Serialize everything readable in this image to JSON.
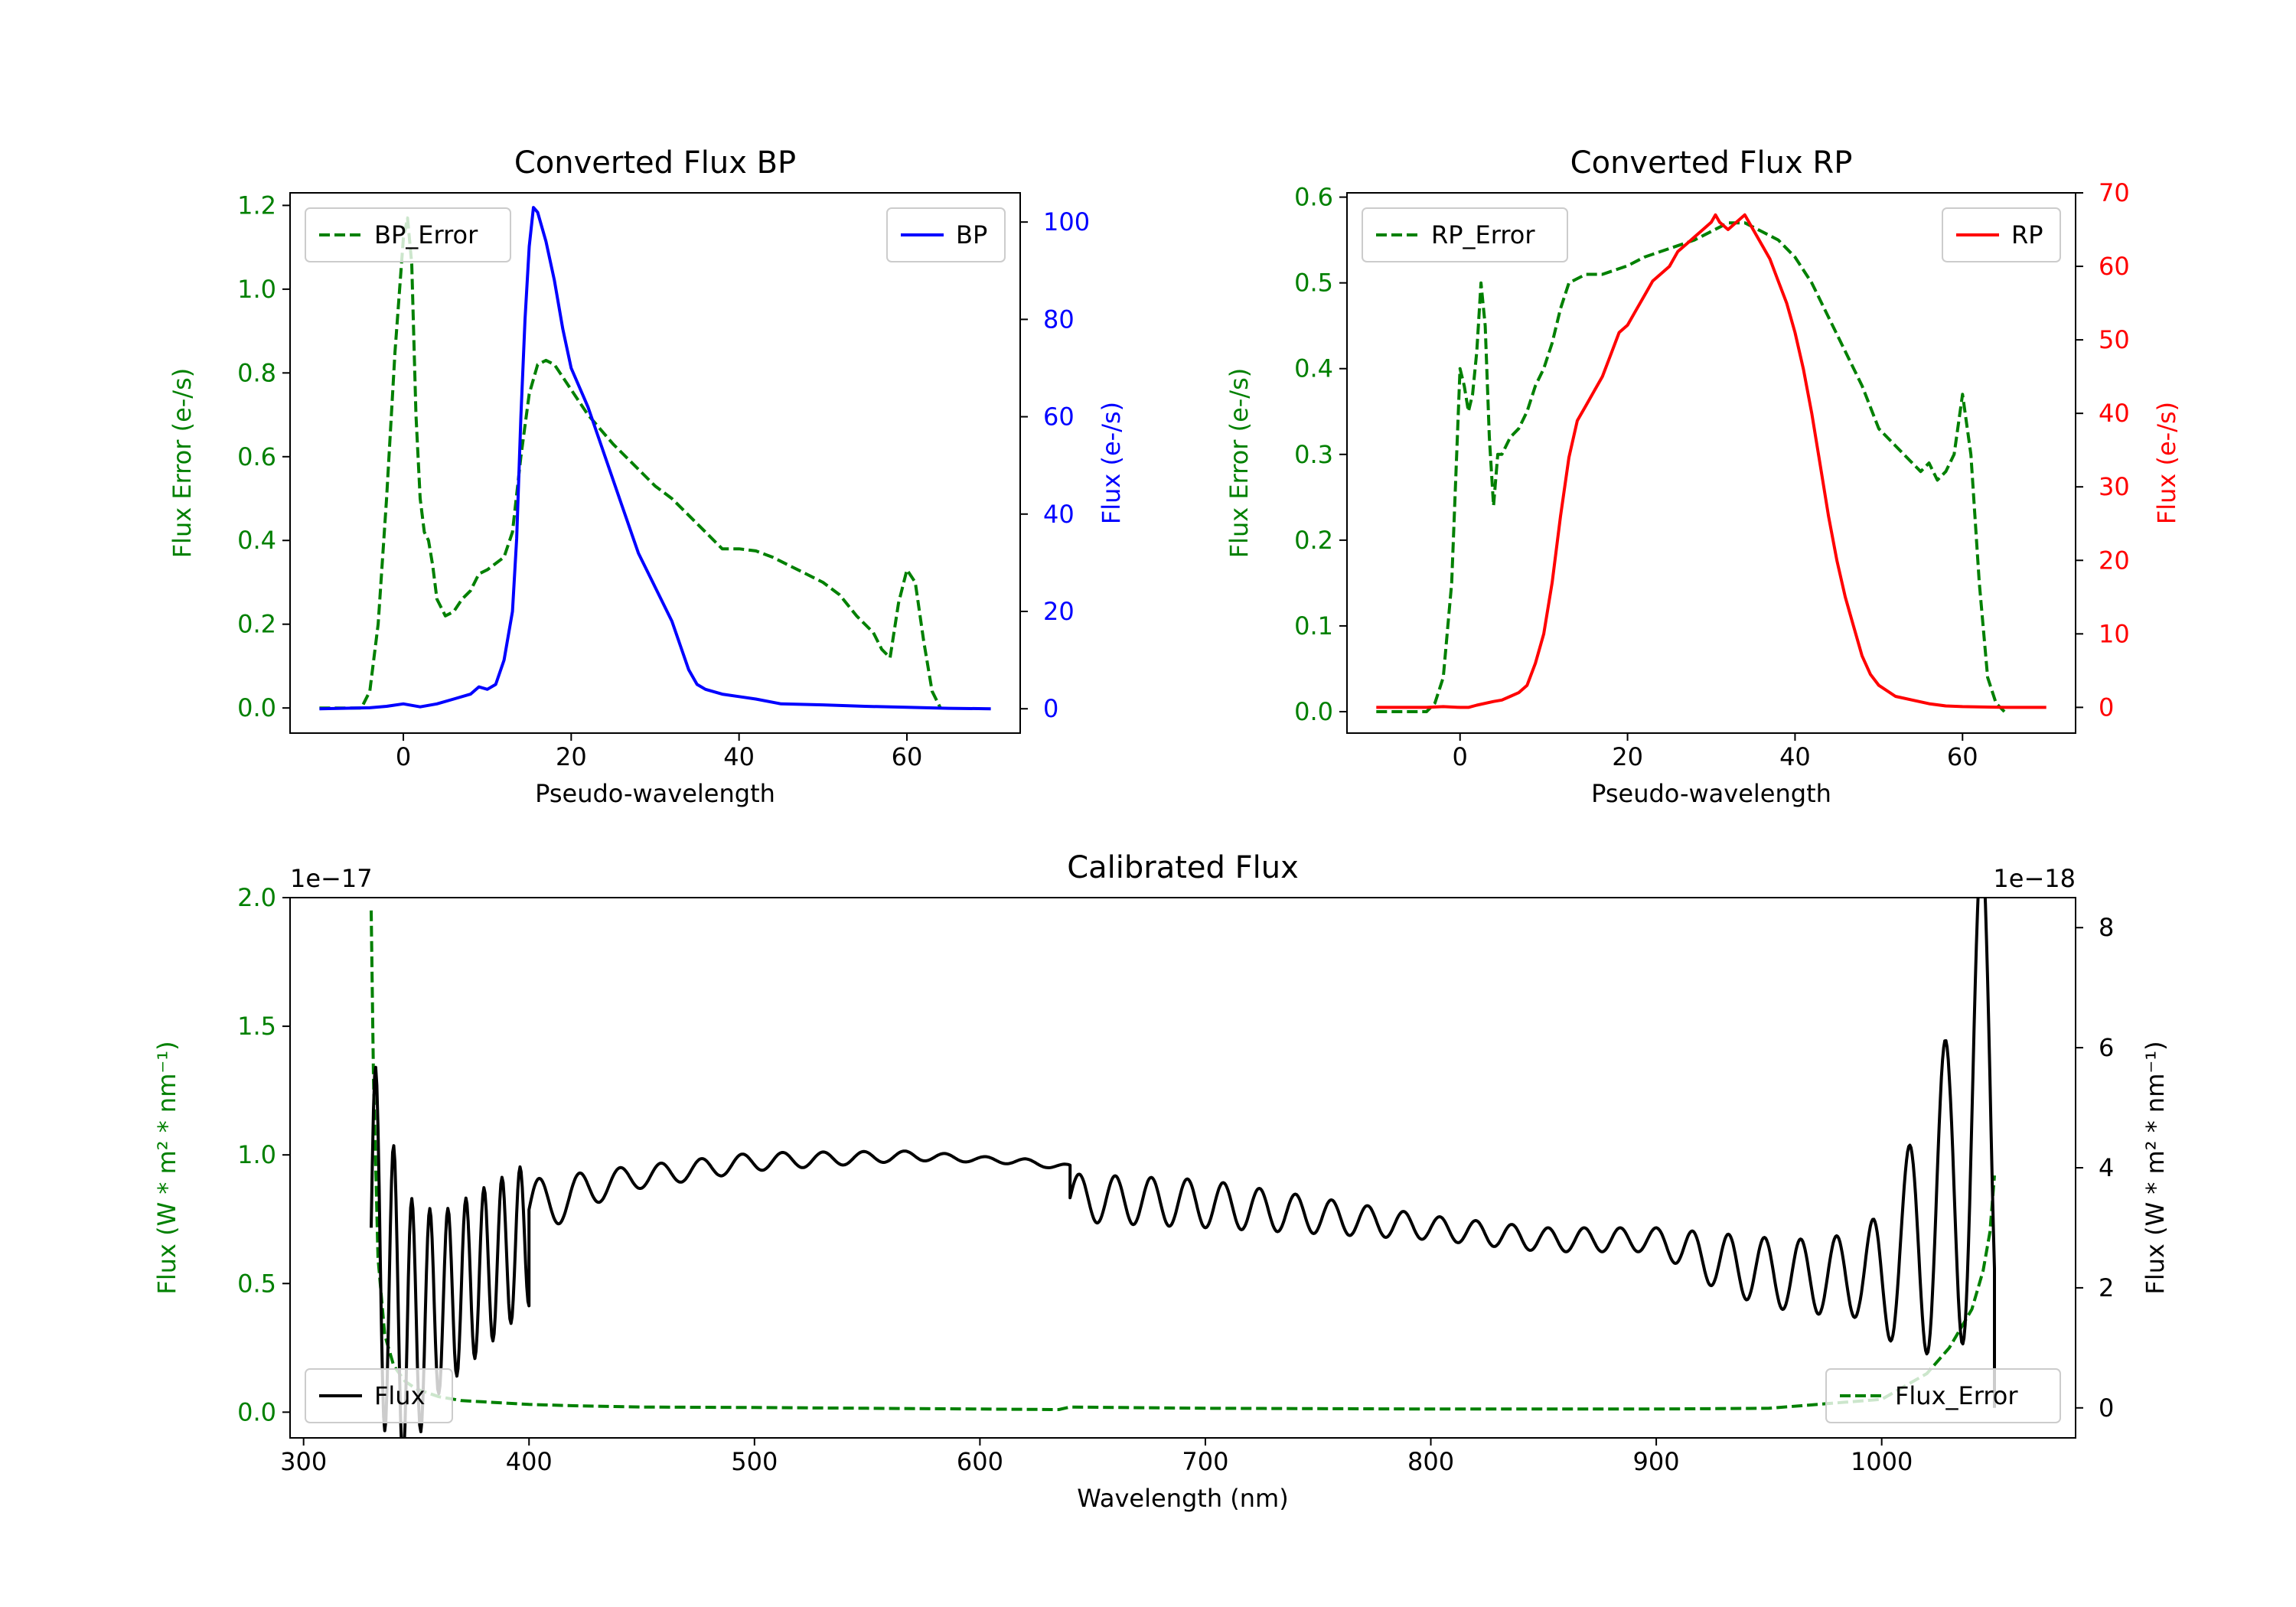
{
  "colors": {
    "bp": "#0000ff",
    "rp": "#ff0000",
    "error": "#008000",
    "flux": "#000000",
    "axis": "#000000"
  },
  "chart_data": [
    {
      "id": "bp",
      "type": "line",
      "title": "Converted Flux BP",
      "xlabel": "Pseudo-wavelength",
      "ylabel_left": "Flux Error (e-/s)",
      "ylabel_right": "Flux (e-/s)",
      "xlim": [
        -13.5,
        73.5
      ],
      "ylim_left": [
        -0.06,
        1.23
      ],
      "ylim_right": [
        -5,
        106
      ],
      "xticks": [
        0,
        20,
        40,
        60
      ],
      "xtick_labels": [
        "0",
        "20",
        "40",
        "60"
      ],
      "yticks_left": [
        0,
        0.2,
        0.4,
        0.6,
        0.8,
        1.0,
        1.2
      ],
      "ytick_labels_left": [
        "0.0",
        "0.2",
        "0.4",
        "0.6",
        "0.8",
        "1.0",
        "1.2"
      ],
      "yticks_right": [
        0,
        20,
        40,
        60,
        80,
        100
      ],
      "ytick_labels_right": [
        "0",
        "20",
        "40",
        "60",
        "80",
        "100"
      ],
      "legend_left": "BP_Error",
      "legend_right": "BP",
      "series": [
        {
          "name": "BP_Error",
          "axis": "left",
          "style": "dashed",
          "x": [
            -10,
            -6,
            -5,
            -4,
            -3,
            -2,
            -1,
            0,
            0.5,
            1,
            1.5,
            2,
            2.5,
            3,
            3.5,
            4,
            5,
            6,
            7,
            8,
            9,
            10,
            12,
            13,
            14,
            15,
            16,
            17,
            18,
            20,
            22,
            25,
            28,
            30,
            32,
            34,
            36,
            38,
            40,
            42,
            44,
            46,
            48,
            50,
            52,
            54,
            56,
            57,
            58,
            59,
            60,
            61,
            62,
            63,
            64
          ],
          "y": [
            0,
            0,
            0,
            0.04,
            0.2,
            0.5,
            0.85,
            1.12,
            1.17,
            1.06,
            0.7,
            0.5,
            0.42,
            0.4,
            0.34,
            0.26,
            0.22,
            0.23,
            0.26,
            0.28,
            0.32,
            0.33,
            0.36,
            0.42,
            0.6,
            0.75,
            0.82,
            0.83,
            0.82,
            0.76,
            0.7,
            0.63,
            0.57,
            0.53,
            0.5,
            0.46,
            0.42,
            0.38,
            0.38,
            0.375,
            0.36,
            0.34,
            0.32,
            0.3,
            0.27,
            0.22,
            0.18,
            0.14,
            0.12,
            0.25,
            0.33,
            0.3,
            0.16,
            0.04,
            0
          ]
        },
        {
          "name": "BP",
          "axis": "right",
          "style": "solid",
          "x": [
            -10,
            -4,
            -2,
            0,
            2,
            4,
            6,
            8,
            9,
            10,
            11,
            12,
            13,
            13.5,
            14,
            14.5,
            15,
            15.5,
            16,
            17,
            18,
            19,
            20,
            22,
            24,
            26,
            28,
            30,
            32,
            33,
            34,
            35,
            36,
            38,
            40,
            42,
            45,
            50,
            55,
            60,
            65,
            70
          ],
          "y": [
            0,
            0.2,
            0.5,
            1,
            0.4,
            1,
            2,
            3,
            4.5,
            4,
            5,
            10,
            20,
            35,
            60,
            80,
            95,
            103,
            102,
            96,
            88,
            78,
            70,
            62,
            52,
            42,
            32,
            25,
            18,
            13,
            8,
            5,
            4,
            3,
            2.5,
            2,
            1,
            0.8,
            0.5,
            0.3,
            0.1,
            0
          ]
        }
      ]
    },
    {
      "id": "rp",
      "type": "line",
      "title": "Converted Flux RP",
      "xlabel": "Pseudo-wavelength",
      "ylabel_left": "Flux Error (e-/s)",
      "ylabel_right": "Flux (e-/s)",
      "xlim": [
        -13.5,
        73.5
      ],
      "ylim_left": [
        -0.025,
        0.605
      ],
      "ylim_right": [
        -3.5,
        70
      ],
      "xticks": [
        0,
        20,
        40,
        60
      ],
      "xtick_labels": [
        "0",
        "20",
        "40",
        "60"
      ],
      "yticks_left": [
        0,
        0.1,
        0.2,
        0.3,
        0.4,
        0.5,
        0.6
      ],
      "ytick_labels_left": [
        "0.0",
        "0.1",
        "0.2",
        "0.3",
        "0.4",
        "0.5",
        "0.6"
      ],
      "yticks_right": [
        0,
        10,
        20,
        30,
        40,
        50,
        60,
        70
      ],
      "ytick_labels_right": [
        "0",
        "10",
        "20",
        "30",
        "40",
        "50",
        "60",
        "70"
      ],
      "legend_left": "RP_Error",
      "legend_right": "RP",
      "series": [
        {
          "name": "RP_Error",
          "axis": "left",
          "style": "dashed",
          "x": [
            -10,
            -5,
            -4,
            -3,
            -2,
            -1,
            0,
            0.5,
            1,
            1.5,
            2,
            2.5,
            3,
            3.5,
            4,
            4.5,
            5,
            6,
            7,
            8,
            9,
            10,
            11,
            12,
            13,
            14,
            15,
            17,
            20,
            22,
            25,
            28,
            30,
            32,
            34,
            36,
            38,
            40,
            42,
            44,
            46,
            48,
            50,
            52,
            54,
            55,
            56,
            57,
            58,
            59,
            60,
            61,
            62,
            63,
            64,
            65
          ],
          "y": [
            0,
            0,
            0,
            0.01,
            0.04,
            0.15,
            0.4,
            0.38,
            0.35,
            0.37,
            0.42,
            0.5,
            0.45,
            0.32,
            0.24,
            0.3,
            0.3,
            0.32,
            0.33,
            0.35,
            0.38,
            0.4,
            0.43,
            0.47,
            0.5,
            0.505,
            0.51,
            0.51,
            0.52,
            0.53,
            0.54,
            0.55,
            0.56,
            0.57,
            0.57,
            0.56,
            0.55,
            0.53,
            0.5,
            0.46,
            0.42,
            0.38,
            0.33,
            0.31,
            0.29,
            0.28,
            0.29,
            0.27,
            0.28,
            0.3,
            0.37,
            0.3,
            0.15,
            0.04,
            0.01,
            0
          ]
        },
        {
          "name": "RP",
          "axis": "right",
          "style": "solid",
          "x": [
            -10,
            -4,
            -2,
            0,
            1,
            2,
            4,
            5,
            6,
            7,
            8,
            9,
            10,
            11,
            12,
            13,
            14,
            15,
            16,
            17,
            18,
            19,
            20,
            21,
            22,
            23,
            24,
            25,
            26,
            27,
            28,
            29,
            30,
            30.5,
            31,
            32,
            33,
            34,
            35,
            36,
            37,
            38,
            39,
            40,
            41,
            42,
            43,
            44,
            45,
            46,
            47,
            48,
            49,
            50,
            52,
            54,
            56,
            58,
            60,
            65,
            70
          ],
          "y": [
            0,
            0,
            0.1,
            0,
            0,
            0.3,
            0.8,
            1,
            1.5,
            2,
            3,
            6,
            10,
            17,
            26,
            34,
            39,
            41,
            43,
            45,
            48,
            51,
            52,
            54,
            56,
            58,
            59,
            60,
            62,
            63,
            64,
            65,
            66,
            67,
            66,
            65,
            66,
            67,
            65,
            63,
            61,
            58,
            55,
            51,
            46,
            40,
            33,
            26,
            20,
            15,
            11,
            7,
            4.5,
            3,
            1.5,
            1,
            0.5,
            0.2,
            0.1,
            0,
            0
          ]
        }
      ]
    },
    {
      "id": "calibrated",
      "type": "line",
      "title": "Calibrated Flux",
      "xlabel": "Wavelength (nm)",
      "ylabel_left": "Flux (W * m² * nm⁻¹)",
      "ylabel_right": "Flux (W * m² * nm⁻¹)",
      "offset_left": "1e−17",
      "offset_right": "1e−18",
      "xlim": [
        294,
        1086
      ],
      "ylim_left": [
        -0.1,
        2.0
      ],
      "ylim_right": [
        -0.5,
        8.5
      ],
      "xticks": [
        300,
        400,
        500,
        600,
        700,
        800,
        900,
        1000
      ],
      "xtick_labels": [
        "300",
        "400",
        "500",
        "600",
        "700",
        "800",
        "900",
        "1000"
      ],
      "yticks_left": [
        0,
        0.5,
        1.0,
        1.5,
        2.0
      ],
      "ytick_labels_left": [
        "0.0",
        "0.5",
        "1.0",
        "1.5",
        "2.0"
      ],
      "yticks_right": [
        0,
        2,
        4,
        6,
        8
      ],
      "ytick_labels_right": [
        "0",
        "2",
        "4",
        "6",
        "8"
      ],
      "legend_left": "Flux",
      "legend_right": "Flux_Error",
      "series": [
        {
          "name": "Flux_Error",
          "axis": "left",
          "style": "dashed",
          "x": [
            330,
            331,
            333,
            336,
            340,
            345,
            350,
            360,
            370,
            380,
            390,
            400,
            420,
            450,
            500,
            550,
            600,
            635,
            640,
            700,
            800,
            900,
            950,
            1000,
            1020,
            1030,
            1040,
            1045,
            1048,
            1050
          ],
          "y": [
            1.95,
            1.3,
            0.6,
            0.3,
            0.18,
            0.12,
            0.09,
            0.06,
            0.045,
            0.04,
            0.035,
            0.03,
            0.025,
            0.02,
            0.018,
            0.015,
            0.012,
            0.01,
            0.02,
            0.015,
            0.012,
            0.012,
            0.015,
            0.05,
            0.15,
            0.25,
            0.4,
            0.55,
            0.7,
            0.92
          ]
        }
      ],
      "flux_series": {
        "name": "Flux",
        "axis": "right",
        "style": "solid",
        "segments": [
          {
            "from": 330,
            "to": 400,
            "base": [
              [
                330,
                3
              ],
              [
                345,
                1.3
              ],
              [
                400,
                2.9
              ]
            ],
            "amp": [
              [
                330,
                3
              ],
              [
                360,
                1.5
              ],
              [
                400,
                1.2
              ]
            ],
            "period": 8
          },
          {
            "from": 400,
            "to": 640,
            "base": [
              [
                400,
                3.3
              ],
              [
                440,
                3.8
              ],
              [
                500,
                4.1
              ],
              [
                570,
                4.2
              ],
              [
                620,
                4.1
              ],
              [
                640,
                4
              ]
            ],
            "amp": [
              [
                400,
                0.5
              ],
              [
                440,
                0.2
              ],
              [
                500,
                0.15
              ],
              [
                600,
                0.05
              ],
              [
                640,
                0.05
              ]
            ],
            "period": 18
          },
          {
            "from": 640,
            "to": 1050,
            "base": [
              [
                640,
                3.5
              ],
              [
                700,
                3.4
              ],
              [
                750,
                3.2
              ],
              [
                800,
                3
              ],
              [
                850,
                2.8
              ],
              [
                900,
                2.8
              ],
              [
                930,
                2.4
              ],
              [
                960,
                2.2
              ],
              [
                1000,
                2.2
              ],
              [
                1030,
                3.5
              ],
              [
                1045,
                5.5
              ]
            ],
            "amp": [
              [
                640,
                0.4
              ],
              [
                700,
                0.4
              ],
              [
                800,
                0.2
              ],
              [
                900,
                0.2
              ],
              [
                930,
                0.5
              ],
              [
                990,
                0.7
              ],
              [
                1010,
                1.5
              ],
              [
                1040,
                3.5
              ],
              [
                1050,
                4.5
              ]
            ],
            "period": 16
          }
        ],
        "end_value": 0
      }
    }
  ]
}
